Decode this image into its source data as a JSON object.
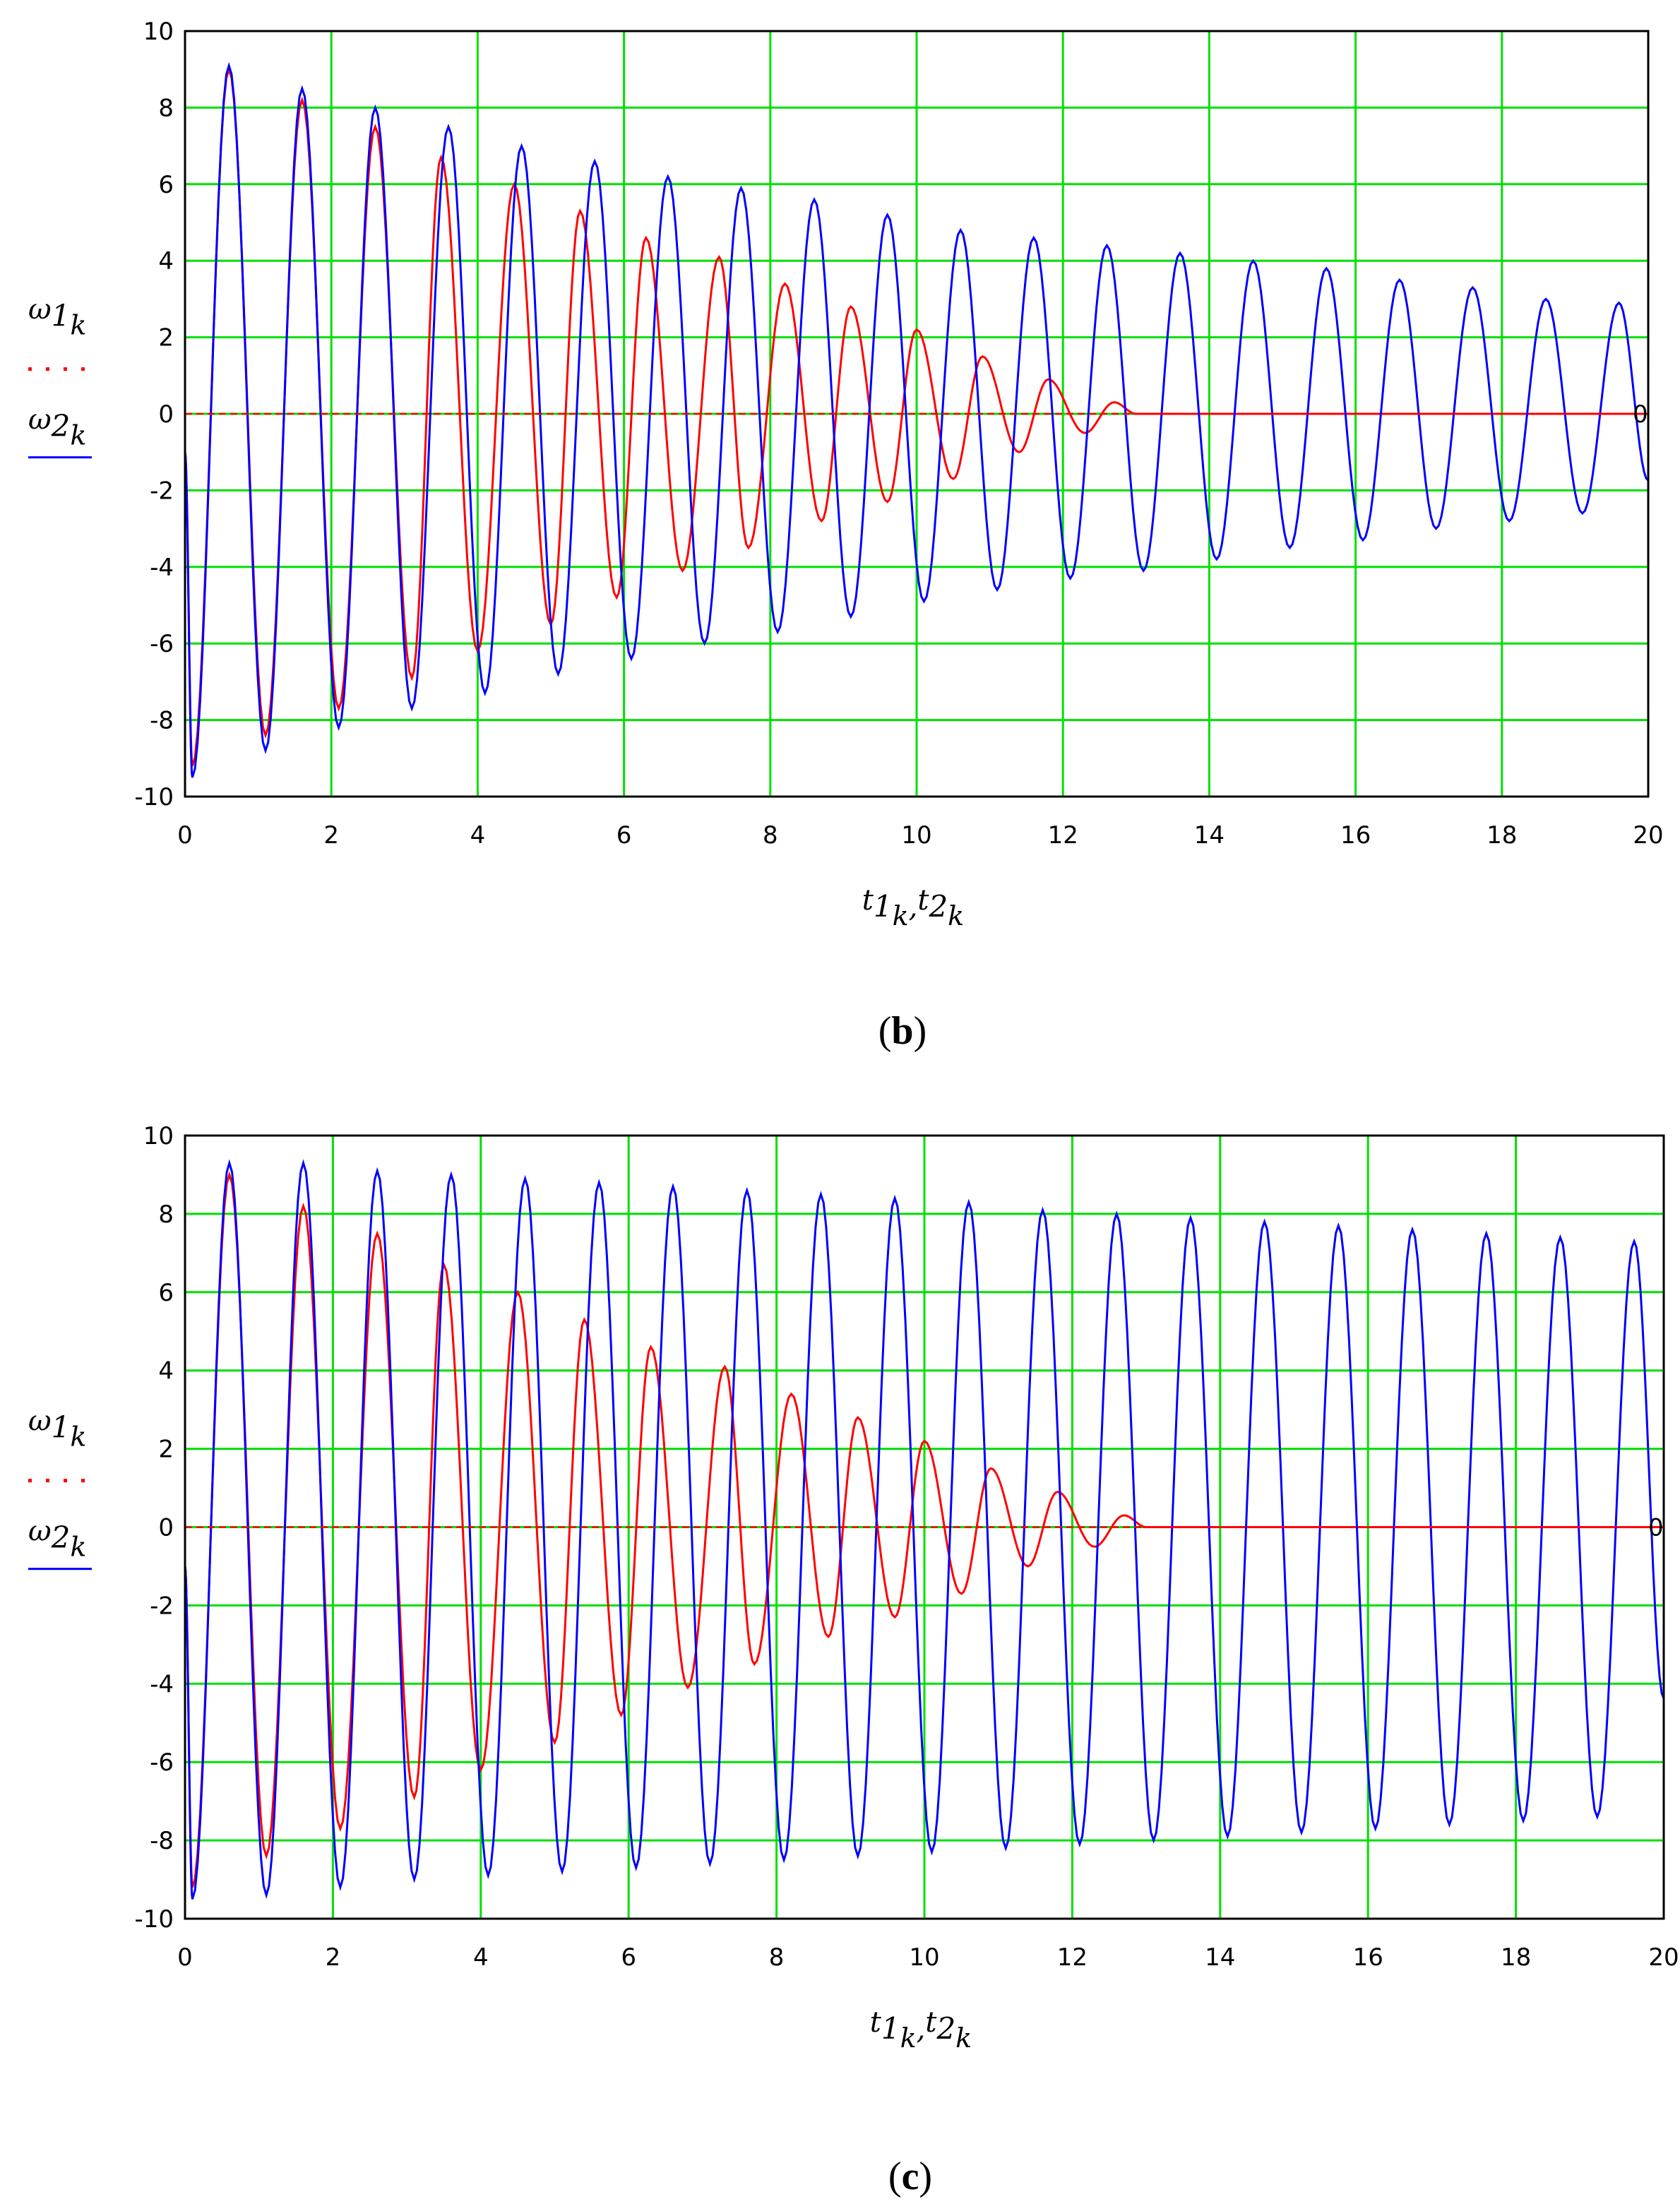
{
  "chart_data": [
    {
      "type": "line",
      "panel_label": "b",
      "x_axis": {
        "label_parts": [
          "t",
          "1",
          "k",
          ",",
          "t",
          "2",
          "k"
        ],
        "range": [
          0,
          20
        ],
        "ticks": [
          "0",
          "2",
          "4",
          "6",
          "8",
          "10",
          "12",
          "14",
          "16",
          "18",
          "20"
        ]
      },
      "y_axis": {
        "label_top": [
          "ω",
          "1",
          "k"
        ],
        "label_bottom": [
          "ω",
          "2",
          "k"
        ],
        "range": [
          -10,
          10
        ],
        "ticks": [
          "10",
          "8",
          "6",
          "4",
          "2",
          "0",
          "-2",
          "-4",
          "-6",
          "-8",
          "-10"
        ]
      },
      "grid": true,
      "zero_marker": "0",
      "series": [
        {
          "name": "ω1k",
          "color": "#ff0000",
          "style": "solid",
          "peaks": [
            [
              0.6,
              9.0
            ],
            [
              1.6,
              8.2
            ],
            [
              2.6,
              7.5
            ],
            [
              3.5,
              6.7
            ],
            [
              4.5,
              6.0
            ],
            [
              5.4,
              5.3
            ],
            [
              6.3,
              4.6
            ],
            [
              7.3,
              4.1
            ],
            [
              8.2,
              3.4
            ],
            [
              9.1,
              2.8
            ],
            [
              10.0,
              2.2
            ],
            [
              10.9,
              1.5
            ],
            [
              11.8,
              0.9
            ],
            [
              12.7,
              0.3
            ]
          ],
          "troughs": [
            [
              0.1,
              -9.2
            ],
            [
              1.1,
              -8.4
            ],
            [
              2.1,
              -7.7
            ],
            [
              3.1,
              -6.9
            ],
            [
              4.0,
              -6.2
            ],
            [
              5.0,
              -5.5
            ],
            [
              5.9,
              -4.8
            ],
            [
              6.8,
              -4.1
            ],
            [
              7.7,
              -3.5
            ],
            [
              8.7,
              -2.8
            ],
            [
              9.6,
              -2.3
            ],
            [
              10.5,
              -1.7
            ],
            [
              11.4,
              -1.0
            ],
            [
              12.3,
              -0.5
            ]
          ],
          "zero_after": 13.0
        },
        {
          "name": "ω2k",
          "color": "#0000ff",
          "style": "solid",
          "peaks": [
            [
              0.6,
              9.1
            ],
            [
              1.6,
              8.5
            ],
            [
              2.6,
              8.0
            ],
            [
              3.6,
              7.5
            ],
            [
              4.6,
              7.0
            ],
            [
              5.6,
              6.6
            ],
            [
              6.6,
              6.2
            ],
            [
              7.6,
              5.9
            ],
            [
              8.6,
              5.6
            ],
            [
              9.6,
              5.2
            ],
            [
              10.6,
              4.8
            ],
            [
              11.6,
              4.6
            ],
            [
              12.6,
              4.4
            ],
            [
              13.6,
              4.2
            ],
            [
              14.6,
              4.0
            ],
            [
              15.6,
              3.8
            ],
            [
              16.6,
              3.5
            ],
            [
              17.6,
              3.3
            ],
            [
              18.6,
              3.0
            ],
            [
              19.6,
              2.9
            ]
          ],
          "troughs": [
            [
              0.1,
              -9.5
            ],
            [
              1.1,
              -8.8
            ],
            [
              2.1,
              -8.2
            ],
            [
              3.1,
              -7.7
            ],
            [
              4.1,
              -7.3
            ],
            [
              5.1,
              -6.8
            ],
            [
              6.1,
              -6.4
            ],
            [
              7.1,
              -6.0
            ],
            [
              8.1,
              -5.7
            ],
            [
              9.1,
              -5.3
            ],
            [
              10.1,
              -4.9
            ],
            [
              11.1,
              -4.6
            ],
            [
              12.1,
              -4.3
            ],
            [
              13.1,
              -4.1
            ],
            [
              14.1,
              -3.8
            ],
            [
              15.1,
              -3.5
            ],
            [
              16.1,
              -3.3
            ],
            [
              17.1,
              -3.0
            ],
            [
              18.1,
              -2.8
            ],
            [
              19.1,
              -2.6
            ]
          ]
        }
      ]
    },
    {
      "type": "line",
      "panel_label": "c",
      "x_axis": {
        "label_parts": [
          "t",
          "1",
          "k",
          ",",
          "t",
          "2",
          "k"
        ],
        "range": [
          0,
          20
        ],
        "ticks": [
          "0",
          "2",
          "4",
          "6",
          "8",
          "10",
          "12",
          "14",
          "16",
          "18",
          "20"
        ]
      },
      "y_axis": {
        "label_top": [
          "ω",
          "1",
          "k"
        ],
        "label_bottom": [
          "ω",
          "2",
          "k"
        ],
        "range": [
          -10,
          10
        ],
        "ticks": [
          "10",
          "8",
          "6",
          "4",
          "2",
          "0",
          "-2",
          "-4",
          "-6",
          "-8",
          "-10"
        ]
      },
      "grid": true,
      "zero_marker": "0",
      "series": [
        {
          "name": "ω1k",
          "color": "#ff0000",
          "style": "solid",
          "peaks": [
            [
              0.6,
              9.0
            ],
            [
              1.6,
              8.2
            ],
            [
              2.6,
              7.5
            ],
            [
              3.5,
              6.7
            ],
            [
              4.5,
              6.0
            ],
            [
              5.4,
              5.3
            ],
            [
              6.3,
              4.6
            ],
            [
              7.3,
              4.1
            ],
            [
              8.2,
              3.4
            ],
            [
              9.1,
              2.8
            ],
            [
              10.0,
              2.2
            ],
            [
              10.9,
              1.5
            ],
            [
              11.8,
              0.9
            ],
            [
              12.7,
              0.3
            ]
          ],
          "troughs": [
            [
              0.1,
              -9.2
            ],
            [
              1.1,
              -8.4
            ],
            [
              2.1,
              -7.7
            ],
            [
              3.1,
              -6.9
            ],
            [
              4.0,
              -6.2
            ],
            [
              5.0,
              -5.5
            ],
            [
              5.9,
              -4.8
            ],
            [
              6.8,
              -4.1
            ],
            [
              7.7,
              -3.5
            ],
            [
              8.7,
              -2.8
            ],
            [
              9.6,
              -2.3
            ],
            [
              10.5,
              -1.7
            ],
            [
              11.4,
              -1.0
            ],
            [
              12.3,
              -0.5
            ]
          ],
          "zero_after": 13.0
        },
        {
          "name": "ω2k",
          "color": "#0000ff",
          "style": "solid",
          "peaks": [
            [
              0.6,
              9.3
            ],
            [
              1.6,
              9.3
            ],
            [
              2.6,
              9.1
            ],
            [
              3.6,
              9.0
            ],
            [
              4.6,
              8.9
            ],
            [
              5.6,
              8.8
            ],
            [
              6.6,
              8.7
            ],
            [
              7.6,
              8.6
            ],
            [
              8.6,
              8.5
            ],
            [
              9.6,
              8.4
            ],
            [
              10.6,
              8.3
            ],
            [
              11.6,
              8.1
            ],
            [
              12.6,
              8.0
            ],
            [
              13.6,
              7.9
            ],
            [
              14.6,
              7.8
            ],
            [
              15.6,
              7.7
            ],
            [
              16.6,
              7.6
            ],
            [
              17.6,
              7.5
            ],
            [
              18.6,
              7.4
            ],
            [
              19.6,
              7.3
            ]
          ],
          "troughs": [
            [
              0.1,
              -9.5
            ],
            [
              1.1,
              -9.4
            ],
            [
              2.1,
              -9.2
            ],
            [
              3.1,
              -9.0
            ],
            [
              4.1,
              -8.9
            ],
            [
              5.1,
              -8.8
            ],
            [
              6.1,
              -8.7
            ],
            [
              7.1,
              -8.6
            ],
            [
              8.1,
              -8.5
            ],
            [
              9.1,
              -8.4
            ],
            [
              10.1,
              -8.3
            ],
            [
              11.1,
              -8.2
            ],
            [
              12.1,
              -8.1
            ],
            [
              13.1,
              -8.0
            ],
            [
              14.1,
              -7.9
            ],
            [
              15.1,
              -7.8
            ],
            [
              16.1,
              -7.7
            ],
            [
              17.1,
              -7.6
            ],
            [
              18.1,
              -7.5
            ],
            [
              19.1,
              -7.4
            ]
          ]
        }
      ]
    }
  ],
  "captions": {
    "b": "b",
    "c": "c"
  }
}
